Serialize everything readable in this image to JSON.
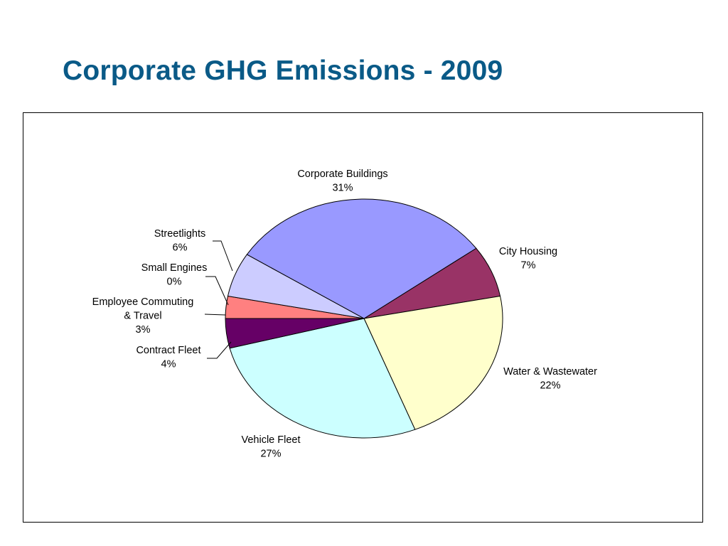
{
  "slide": {
    "title": "Corporate GHG Emissions - 2009"
  },
  "chart_data": {
    "type": "pie",
    "title": "",
    "start_angle_deg": 36,
    "direction": "clockwise",
    "slices": [
      {
        "name": "City Housing",
        "label_lines": [
          "City Housing"
        ],
        "value": 7,
        "value_label": "7%",
        "color": "#993366"
      },
      {
        "name": "Water & Wastewater",
        "label_lines": [
          "Water & Wastewater"
        ],
        "value": 22,
        "value_label": "22%",
        "color": "#ffffcc"
      },
      {
        "name": "Vehicle Fleet",
        "label_lines": [
          "Vehicle Fleet"
        ],
        "value": 27,
        "value_label": "27%",
        "color": "#ccffff"
      },
      {
        "name": "Contract Fleet",
        "label_lines": [
          "Contract Fleet"
        ],
        "value": 4,
        "value_label": "4%",
        "color": "#660066"
      },
      {
        "name": "Employee Commuting & Travel",
        "label_lines": [
          "Employee Commuting",
          "& Travel"
        ],
        "value": 3,
        "value_label": "3%",
        "color": "#ff8080"
      },
      {
        "name": "Small Engines",
        "label_lines": [
          "Small Engines"
        ],
        "value": 0,
        "value_label": "0%",
        "color": "#3366ff"
      },
      {
        "name": "Streetlights",
        "label_lines": [
          "Streetlights"
        ],
        "value": 6,
        "value_label": "6%",
        "color": "#ccccff"
      },
      {
        "name": "Corporate Buildings",
        "label_lines": [
          "Corporate Buildings"
        ],
        "value": 31,
        "value_label": "31%",
        "color": "#9999ff"
      }
    ]
  }
}
